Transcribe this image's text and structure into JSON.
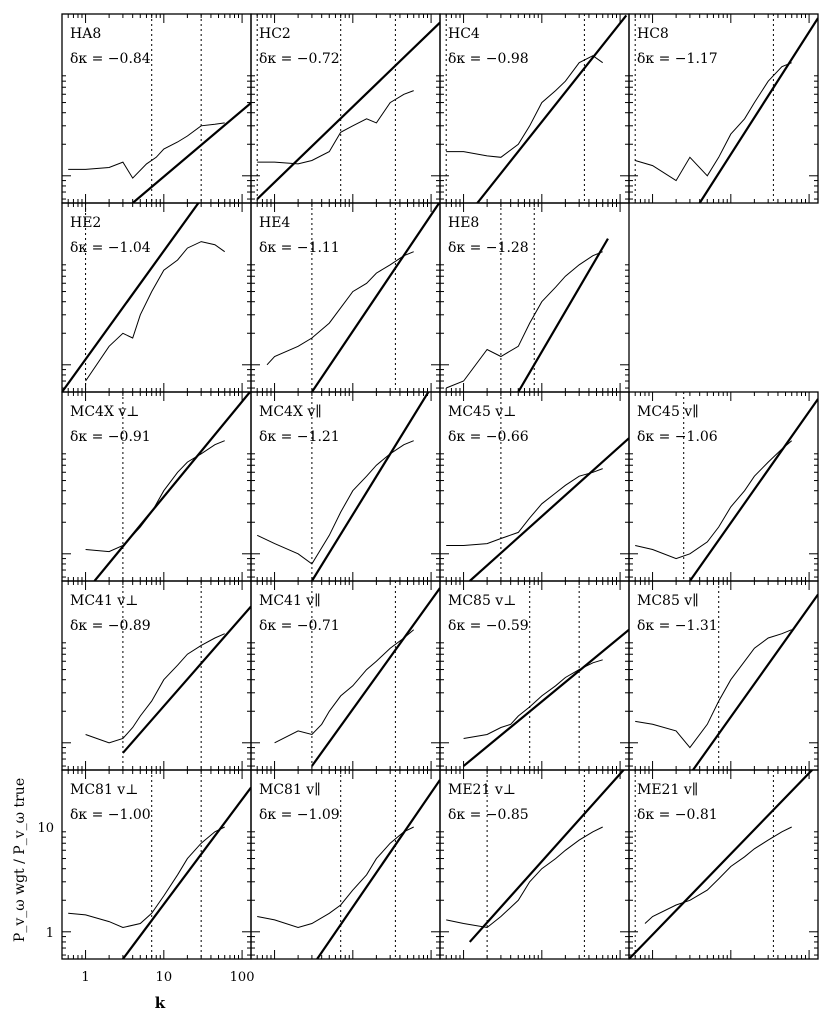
{
  "chart_data": {
    "type": "line",
    "layout": "grid 4 columns x 5 rows, panels share axes",
    "xlabel": "k",
    "ylabel": "P_v_ω wgt / P_v_ω true",
    "xscale": "log",
    "yscale": "log",
    "xlim": [
      0.5,
      130
    ],
    "ylim": [
      0.55,
      35
    ],
    "xticks": [
      1,
      10,
      100
    ],
    "xtick_labels": [
      "1",
      "10",
      "100"
    ],
    "yticks": [
      1,
      10
    ],
    "ytick_labels": [
      "1",
      "10"
    ],
    "panels": [
      {
        "name": "HA8",
        "delta_kappa": "−0.84",
        "vmark": [
          7,
          30
        ],
        "fit": [
          [
            4,
            0.55
          ],
          [
            130,
            4.96
          ]
        ],
        "curve": [
          [
            0.6,
            1.15
          ],
          [
            1,
            1.15
          ],
          [
            2,
            1.2
          ],
          [
            3,
            1.35
          ],
          [
            4,
            0.95
          ],
          [
            6,
            1.3
          ],
          [
            8,
            1.5
          ],
          [
            10,
            1.8
          ],
          [
            15,
            2.1
          ],
          [
            20,
            2.4
          ],
          [
            30,
            3.0
          ],
          [
            45,
            3.1
          ],
          [
            60,
            3.2
          ]
        ]
      },
      {
        "name": "HC2",
        "delta_kappa": "−0.72",
        "vmark": [
          0.6,
          7,
          35
        ],
        "fit": [
          [
            0.6,
            0.6
          ],
          [
            130,
            29
          ]
        ],
        "curve": [
          [
            0.6,
            1.35
          ],
          [
            1,
            1.35
          ],
          [
            2,
            1.3
          ],
          [
            3,
            1.4
          ],
          [
            5,
            1.7
          ],
          [
            7,
            2.6
          ],
          [
            10,
            3.0
          ],
          [
            15,
            3.5
          ],
          [
            20,
            3.2
          ],
          [
            30,
            5.0
          ],
          [
            45,
            6.0
          ],
          [
            60,
            6.5
          ]
        ]
      },
      {
        "name": "HC4",
        "delta_kappa": "−0.98",
        "vmark": [
          0.6,
          35
        ],
        "fit": [
          [
            1.5,
            0.55
          ],
          [
            120,
            33.9
          ]
        ],
        "curve": [
          [
            0.6,
            1.7
          ],
          [
            1,
            1.7
          ],
          [
            2,
            1.55
          ],
          [
            3,
            1.5
          ],
          [
            5,
            2.0
          ],
          [
            7,
            3.0
          ],
          [
            10,
            5.0
          ],
          [
            15,
            6.5
          ],
          [
            20,
            8.0
          ],
          [
            30,
            12
          ],
          [
            45,
            14
          ],
          [
            60,
            12
          ]
        ]
      },
      {
        "name": "HC8",
        "delta_kappa": "−1.17",
        "vmark": [
          0.6,
          35
        ],
        "fit": [
          [
            4,
            0.55
          ],
          [
            130,
            32
          ]
        ],
        "curve": [
          [
            0.6,
            1.4
          ],
          [
            1,
            1.25
          ],
          [
            2,
            0.9
          ],
          [
            3,
            1.5
          ],
          [
            5,
            1.0
          ],
          [
            7,
            1.5
          ],
          [
            10,
            2.5
          ],
          [
            15,
            3.5
          ],
          [
            20,
            5.0
          ],
          [
            30,
            8.0
          ],
          [
            45,
            11
          ],
          [
            60,
            12
          ]
        ]
      },
      {
        "name": "HE2",
        "delta_kappa": "−1.04",
        "vmark": [
          1
        ],
        "fit": [
          [
            0.5,
            0.55
          ],
          [
            60,
            78
          ]
        ],
        "curve": [
          [
            1,
            0.7
          ],
          [
            2,
            1.5
          ],
          [
            3,
            2.0
          ],
          [
            4,
            1.8
          ],
          [
            5,
            3.0
          ],
          [
            7,
            5.0
          ],
          [
            10,
            8.0
          ],
          [
            15,
            10
          ],
          [
            20,
            13
          ],
          [
            30,
            15
          ],
          [
            45,
            14
          ],
          [
            60,
            12
          ]
        ]
      },
      {
        "name": "HE4",
        "delta_kappa": "−1.11",
        "vmark": [
          3,
          35
        ],
        "fit": [
          [
            3,
            0.55
          ],
          [
            130,
            36
          ]
        ],
        "curve": [
          [
            0.8,
            1.0
          ],
          [
            1,
            1.2
          ],
          [
            2,
            1.5
          ],
          [
            3,
            1.8
          ],
          [
            5,
            2.5
          ],
          [
            7,
            3.5
          ],
          [
            10,
            5.0
          ],
          [
            15,
            6.0
          ],
          [
            20,
            7.5
          ],
          [
            30,
            9.0
          ],
          [
            45,
            11
          ],
          [
            60,
            12
          ]
        ]
      },
      {
        "name": "HE8",
        "delta_kappa": "−1.28",
        "vmark": [
          3,
          8
        ],
        "fit": [
          [
            5,
            0.55
          ],
          [
            70,
            16
          ]
        ],
        "curve": [
          [
            0.6,
            0.6
          ],
          [
            1,
            0.7
          ],
          [
            2,
            1.4
          ],
          [
            3,
            1.2
          ],
          [
            5,
            1.5
          ],
          [
            7,
            2.5
          ],
          [
            10,
            4.0
          ],
          [
            15,
            5.5
          ],
          [
            20,
            7.0
          ],
          [
            30,
            9.0
          ],
          [
            45,
            11
          ],
          [
            60,
            12
          ]
        ]
      },
      {
        "name": "MC4X v⊥",
        "delta_kappa": "−0.91",
        "vmark": [
          3
        ],
        "fit": [
          [
            1.3,
            0.55
          ],
          [
            130,
            36
          ]
        ],
        "curve": [
          [
            1,
            1.1
          ],
          [
            2,
            1.05
          ],
          [
            3,
            1.2
          ],
          [
            4,
            1.5
          ],
          [
            5,
            1.8
          ],
          [
            7,
            2.5
          ],
          [
            10,
            4.0
          ],
          [
            15,
            6.0
          ],
          [
            20,
            7.5
          ],
          [
            30,
            9.0
          ],
          [
            45,
            11
          ],
          [
            60,
            12
          ]
        ]
      },
      {
        "name": "MC4X v∥",
        "delta_kappa": "−1.21",
        "vmark": [
          3
        ],
        "fit": [
          [
            3,
            0.55
          ],
          [
            130,
            53
          ]
        ],
        "curve": [
          [
            0.6,
            1.5
          ],
          [
            1,
            1.25
          ],
          [
            2,
            1.0
          ],
          [
            3,
            0.8
          ],
          [
            5,
            1.5
          ],
          [
            7,
            2.5
          ],
          [
            10,
            4.0
          ],
          [
            15,
            5.5
          ],
          [
            20,
            7.0
          ],
          [
            30,
            9.0
          ],
          [
            45,
            11
          ],
          [
            60,
            12
          ]
        ]
      },
      {
        "name": "MC45 v⊥",
        "delta_kappa": "−0.66",
        "vmark": [
          3
        ],
        "fit": [
          [
            1.2,
            0.55
          ],
          [
            130,
            12.7
          ]
        ],
        "curve": [
          [
            0.6,
            1.2
          ],
          [
            1,
            1.2
          ],
          [
            2,
            1.25
          ],
          [
            3,
            1.4
          ],
          [
            5,
            1.6
          ],
          [
            7,
            2.2
          ],
          [
            10,
            3.0
          ],
          [
            15,
            3.8
          ],
          [
            20,
            4.5
          ],
          [
            30,
            5.5
          ],
          [
            45,
            6.0
          ],
          [
            60,
            6.5
          ]
        ]
      },
      {
        "name": "MC45 v∥",
        "delta_kappa": "−1.06",
        "vmark": [
          2.5
        ],
        "fit": [
          [
            3,
            0.55
          ],
          [
            130,
            30
          ]
        ],
        "curve": [
          [
            0.6,
            1.2
          ],
          [
            1,
            1.1
          ],
          [
            2,
            0.9
          ],
          [
            3,
            1.0
          ],
          [
            5,
            1.3
          ],
          [
            7,
            1.8
          ],
          [
            10,
            2.8
          ],
          [
            15,
            4.0
          ],
          [
            20,
            5.5
          ],
          [
            30,
            7.5
          ],
          [
            45,
            10
          ],
          [
            60,
            12
          ]
        ]
      },
      {
        "name": "MC41 v⊥",
        "delta_kappa": "−0.89",
        "vmark": [
          3,
          30
        ],
        "fit": [
          [
            3,
            0.8
          ],
          [
            130,
            20
          ]
        ],
        "curve": [
          [
            1,
            1.2
          ],
          [
            2,
            1.0
          ],
          [
            3,
            1.1
          ],
          [
            4,
            1.4
          ],
          [
            5,
            1.8
          ],
          [
            7,
            2.5
          ],
          [
            10,
            4.0
          ],
          [
            15,
            5.5
          ],
          [
            20,
            7.0
          ],
          [
            30,
            8.5
          ],
          [
            45,
            10
          ],
          [
            60,
            11
          ]
        ]
      },
      {
        "name": "MC41 v∥",
        "delta_kappa": "−0.71",
        "vmark": [
          3,
          35
        ],
        "fit": [
          [
            3,
            0.6
          ],
          [
            130,
            30
          ]
        ],
        "curve": [
          [
            1,
            1.0
          ],
          [
            2,
            1.3
          ],
          [
            3,
            1.2
          ],
          [
            4,
            1.5
          ],
          [
            5,
            2.0
          ],
          [
            7,
            2.8
          ],
          [
            10,
            3.5
          ],
          [
            15,
            5.0
          ],
          [
            20,
            6.0
          ],
          [
            30,
            8.0
          ],
          [
            45,
            10
          ],
          [
            60,
            12
          ]
        ]
      },
      {
        "name": "MC85 v⊥",
        "delta_kappa": "−0.59",
        "vmark": [
          7,
          30
        ],
        "fit": [
          [
            1,
            0.6
          ],
          [
            130,
            12
          ]
        ],
        "curve": [
          [
            1,
            1.1
          ],
          [
            2,
            1.2
          ],
          [
            3,
            1.4
          ],
          [
            4,
            1.5
          ],
          [
            5,
            1.8
          ],
          [
            7,
            2.2
          ],
          [
            10,
            2.8
          ],
          [
            15,
            3.5
          ],
          [
            20,
            4.2
          ],
          [
            30,
            5.0
          ],
          [
            45,
            5.8
          ],
          [
            60,
            6.2
          ]
        ]
      },
      {
        "name": "MC85 v∥",
        "delta_kappa": "−1.31",
        "vmark": [
          7
        ],
        "fit": [
          [
            3,
            0.5
          ],
          [
            130,
            26
          ]
        ],
        "curve": [
          [
            0.6,
            1.6
          ],
          [
            1,
            1.5
          ],
          [
            2,
            1.3
          ],
          [
            3,
            0.9
          ],
          [
            5,
            1.5
          ],
          [
            7,
            2.5
          ],
          [
            10,
            4.0
          ],
          [
            15,
            6.0
          ],
          [
            20,
            8.0
          ],
          [
            30,
            10
          ],
          [
            45,
            11
          ],
          [
            60,
            12
          ]
        ]
      },
      {
        "name": "MC81 v⊥",
        "delta_kappa": "−1.00",
        "vmark": [
          7,
          30
        ],
        "fit": [
          [
            3,
            0.55
          ],
          [
            130,
            23.8
          ]
        ],
        "curve": [
          [
            0.6,
            1.5
          ],
          [
            1,
            1.45
          ],
          [
            2,
            1.25
          ],
          [
            3,
            1.1
          ],
          [
            5,
            1.2
          ],
          [
            7,
            1.5
          ],
          [
            10,
            2.2
          ],
          [
            15,
            3.5
          ],
          [
            20,
            5.0
          ],
          [
            30,
            7.0
          ],
          [
            45,
            9.0
          ],
          [
            60,
            10
          ]
        ]
      },
      {
        "name": "MC81 v∥",
        "delta_kappa": "−1.09",
        "vmark": [
          7,
          35
        ],
        "fit": [
          [
            3.5,
            0.55
          ],
          [
            130,
            28.2
          ]
        ],
        "curve": [
          [
            0.6,
            1.4
          ],
          [
            1,
            1.3
          ],
          [
            2,
            1.1
          ],
          [
            3,
            1.2
          ],
          [
            5,
            1.5
          ],
          [
            7,
            1.8
          ],
          [
            10,
            2.5
          ],
          [
            15,
            3.5
          ],
          [
            20,
            5.0
          ],
          [
            30,
            7.0
          ],
          [
            45,
            9.0
          ],
          [
            60,
            10
          ]
        ]
      },
      {
        "name": "ME21 v⊥",
        "delta_kappa": "−0.85",
        "vmark": [
          2,
          35
        ],
        "fit": [
          [
            1.2,
            0.8
          ],
          [
            130,
            40
          ]
        ],
        "curve": [
          [
            0.6,
            1.3
          ],
          [
            1,
            1.2
          ],
          [
            2,
            1.1
          ],
          [
            3,
            1.4
          ],
          [
            5,
            2.0
          ],
          [
            7,
            3.0
          ],
          [
            10,
            4.0
          ],
          [
            15,
            5.0
          ],
          [
            20,
            6.0
          ],
          [
            30,
            7.5
          ],
          [
            45,
            9.0
          ],
          [
            60,
            10
          ]
        ]
      },
      {
        "name": "ME21 v∥",
        "delta_kappa": "−0.81",
        "vmark": [
          0.6,
          35
        ],
        "fit": [
          [
            0.5,
            0.55
          ],
          [
            130,
            40
          ]
        ],
        "curve": [
          [
            0.8,
            1.2
          ],
          [
            1,
            1.4
          ],
          [
            2,
            1.8
          ],
          [
            3,
            2.0
          ],
          [
            5,
            2.5
          ],
          [
            7,
            3.2
          ],
          [
            10,
            4.2
          ],
          [
            15,
            5.2
          ],
          [
            20,
            6.2
          ],
          [
            30,
            7.5
          ],
          [
            45,
            9.0
          ],
          [
            60,
            10
          ]
        ]
      }
    ]
  }
}
